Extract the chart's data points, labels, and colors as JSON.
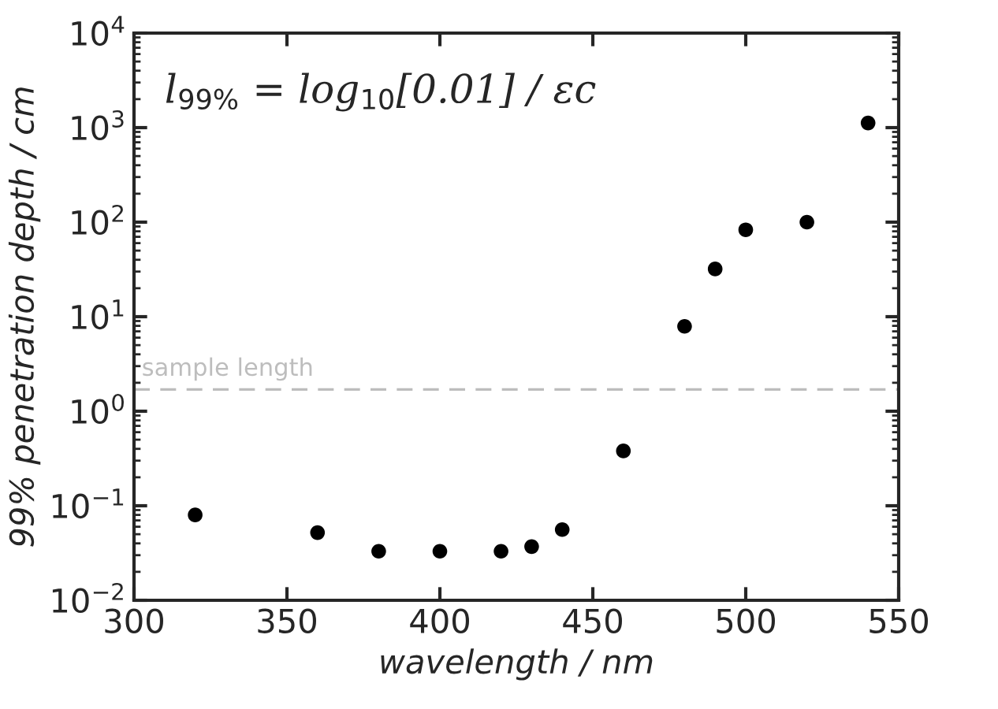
{
  "chart_data": {
    "type": "scatter",
    "xlabel": "wavelength / nm",
    "ylabel": "99% penetration depth / cm",
    "x": [
      320,
      360,
      380,
      400,
      420,
      430,
      440,
      460,
      480,
      490,
      500,
      520,
      540
    ],
    "series": [
      {
        "color": "#000000",
        "values": [
          0.08,
          0.052,
          0.033,
          0.033,
          0.033,
          0.037,
          0.056,
          0.38,
          7.9,
          32,
          83,
          100,
          1120
        ]
      }
    ],
    "marker": "circle",
    "log": "y",
    "grid": false,
    "legend": false,
    "xlim": [
      300,
      550
    ],
    "xticks": [
      300,
      350,
      400,
      450,
      500,
      550
    ],
    "ylim": [
      0.01,
      10000
    ],
    "yticks": [
      {
        "value": 0.01,
        "label": "10$^{−2}$"
      },
      {
        "value": 0.1,
        "label": "10$^{−1}$"
      },
      {
        "value": 1,
        "label": "10$^{0}$"
      },
      {
        "value": 10,
        "label": "10$^{1}$"
      },
      {
        "value": 100,
        "label": "10$^{2}$"
      },
      {
        "value": 1000,
        "label": "10$^{3}$"
      },
      {
        "value": 10000,
        "label": "10$^{4}$"
      }
    ],
    "ref_lines": [
      {
        "axis": "y",
        "value": 1.7,
        "label": "sample length",
        "color": "#bdbdbd",
        "line_style": "dashed"
      }
    ],
    "annotations": [
      "l$_{99%}$ = log$_{10}$[0.01] / εc"
    ]
  }
}
